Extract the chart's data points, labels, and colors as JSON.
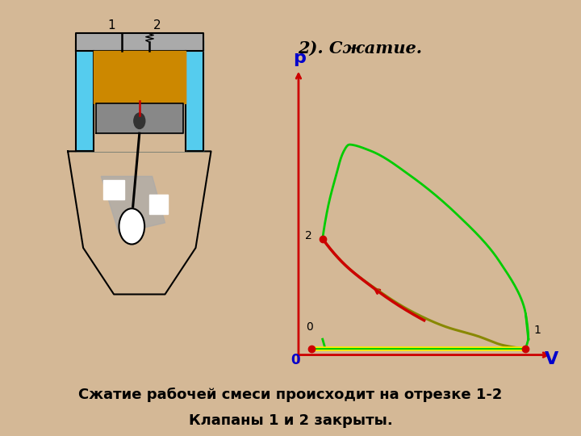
{
  "bg_color": "#d4b896",
  "title": "2). Сжатие.",
  "bottom_text1": "Сжатие рабочей смеси происходит на отрезке 1-2",
  "bottom_text2": "Клапаны 1 и 2 закрыты.",
  "graph_bg": "#ffffff",
  "point0": [
    0.08,
    0.07
  ],
  "point1": [
    0.88,
    0.07
  ],
  "point2": [
    0.12,
    0.42
  ]
}
